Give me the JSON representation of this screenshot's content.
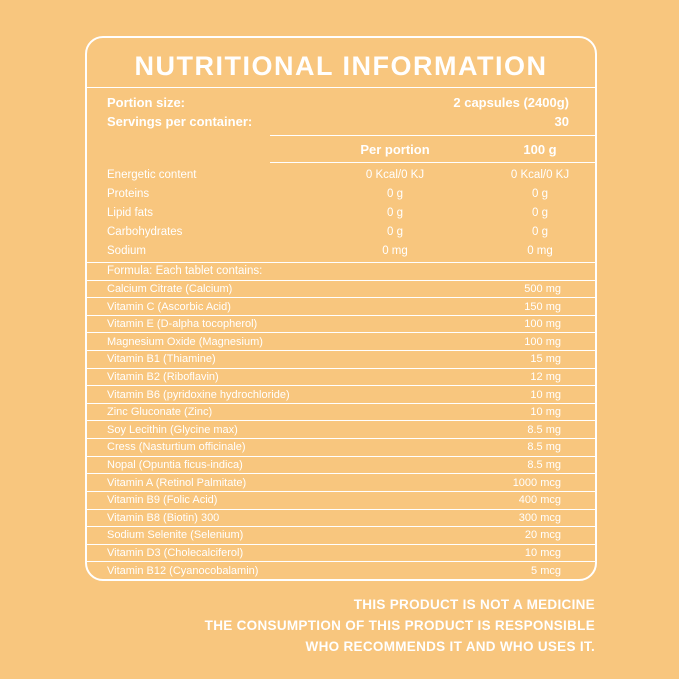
{
  "colors": {
    "background": "#F8C67E",
    "text": "#FFFFFF",
    "border": "#FFFFFF"
  },
  "title": "NUTRITIONAL INFORMATION",
  "portion": {
    "size_label": "Portion size:",
    "size_value": "2 capsules (2400g)",
    "servings_label": "Servings per container:",
    "servings_value": "30"
  },
  "nutrition_table": {
    "col1_header": "Per portion",
    "col2_header": "100 g",
    "rows": [
      {
        "name": "Energetic content",
        "per_portion": "0 Kcal/0 KJ",
        "per_100g": "0 Kcal/0 KJ"
      },
      {
        "name": "Proteins",
        "per_portion": "0 g",
        "per_100g": "0 g"
      },
      {
        "name": "Lipid fats",
        "per_portion": "0 g",
        "per_100g": "0 g"
      },
      {
        "name": "Carbohydrates",
        "per_portion": "0 g",
        "per_100g": "0 g"
      },
      {
        "name": "Sodium",
        "per_portion": "0 mg",
        "per_100g": "0 mg"
      }
    ]
  },
  "formula": {
    "heading": "Formula: Each tablet contains:",
    "rows": [
      {
        "name": "Calcium Citrate (Calcium)",
        "amount": "500 mg"
      },
      {
        "name": "Vitamin C (Ascorbic Acid)",
        "amount": "150 mg"
      },
      {
        "name": "Vitamin E (D-alpha tocopherol)",
        "amount": "100 mg"
      },
      {
        "name": "Magnesium Oxide (Magnesium)",
        "amount": "100 mg"
      },
      {
        "name": "Vitamin B1 (Thiamine)",
        "amount": "15 mg"
      },
      {
        "name": "Vitamin B2 (Riboflavin)",
        "amount": "12 mg"
      },
      {
        "name": "Vitamin B6 (pyridoxine hydrochloride)",
        "amount": "10 mg"
      },
      {
        "name": "Zinc Gluconate (Zinc)",
        "amount": "10 mg"
      },
      {
        "name": "Soy Lecithin (Glycine max)",
        "amount": "8.5 mg"
      },
      {
        "name": "Cress (Nasturtium officinale)",
        "amount": "8.5 mg"
      },
      {
        "name": "Nopal (Opuntia ficus-indica)",
        "amount": "8.5 mg"
      },
      {
        "name": "Vitamin A (Retinol Palmitate)",
        "amount": "1000 mcg"
      },
      {
        "name": "Vitamin B9 (Folic Acid)",
        "amount": "400 mcg"
      },
      {
        "name": "Vitamin B8 (Biotin) 300",
        "amount": "300 mcg"
      },
      {
        "name": "Sodium Selenite (Selenium)",
        "amount": "20 mcg"
      },
      {
        "name": "Vitamin D3 (Cholecalciferol)",
        "amount": "10 mcg"
      },
      {
        "name": "Vitamin B12 (Cyanocobalamin)",
        "amount": "5 mcg"
      }
    ]
  },
  "footer": {
    "lines": [
      "THIS PRODUCT IS NOT A MEDICINE",
      "THE CONSUMPTION OF THIS PRODUCT IS RESPONSIBLE",
      "WHO RECOMMENDS IT AND WHO USES IT."
    ]
  }
}
